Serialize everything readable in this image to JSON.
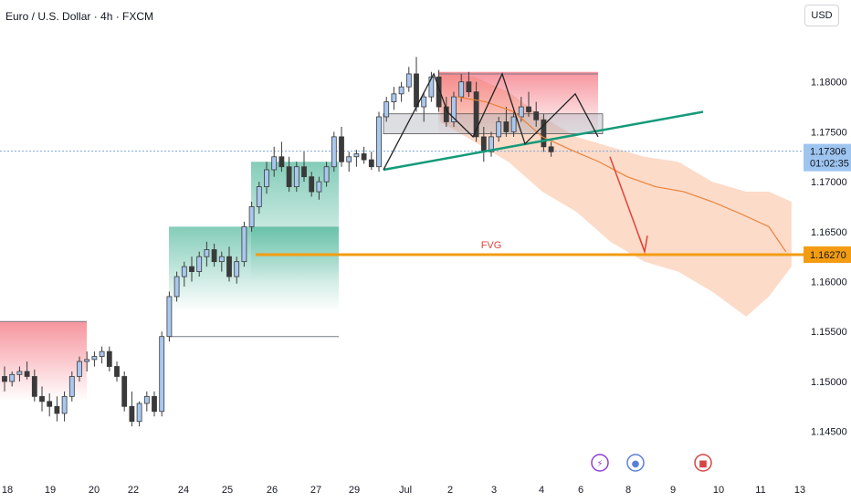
{
  "header": {
    "title": "Euro / U.S. Dollar · 4h · FXCM",
    "currency": "USD"
  },
  "colors": {
    "up": "#a9c8f0",
    "down": "#3a3a3a",
    "teal_line": "#159a7a",
    "fvg_line": "#f39c12",
    "arrow": "#e0443a",
    "projection": "#f7a475",
    "last_price_bg": "#9ec5f0",
    "fvg_price_bg": "#f39c12"
  },
  "chart_data": {
    "type": "candlestick",
    "symbol": "EURUSD",
    "timeframe": "4h",
    "x_ticks": [
      "18",
      "19",
      "20",
      "22",
      "24",
      "25",
      "26",
      "27",
      "29",
      "Jul",
      "2",
      "3",
      "4",
      "6",
      "8",
      "9",
      "10",
      "11",
      "13"
    ],
    "y_ticks": [
      "1.18000",
      "1.17500",
      "1.17000",
      "1.16500",
      "1.16000",
      "1.15500",
      "1.15000",
      "1.14500"
    ],
    "ylim": [
      1.1425,
      1.185
    ],
    "last_price": {
      "price": "1.17306",
      "countdown": "01:02:35"
    },
    "fvg": {
      "label": "FVG",
      "price_label": "1.16270",
      "price": 1.1627
    },
    "candles": [
      [
        1.1505,
        1.1515,
        1.149,
        1.15
      ],
      [
        1.15,
        1.151,
        1.1495,
        1.1507
      ],
      [
        1.1507,
        1.1515,
        1.15,
        1.151
      ],
      [
        1.151,
        1.152,
        1.1502,
        1.1505
      ],
      [
        1.1505,
        1.1512,
        1.148,
        1.1485
      ],
      [
        1.1485,
        1.1495,
        1.147,
        1.148
      ],
      [
        1.148,
        1.1488,
        1.1465,
        1.1475
      ],
      [
        1.1475,
        1.1485,
        1.146,
        1.1468
      ],
      [
        1.1468,
        1.149,
        1.146,
        1.1485
      ],
      [
        1.1485,
        1.151,
        1.148,
        1.1505
      ],
      [
        1.1505,
        1.1525,
        1.15,
        1.152
      ],
      [
        1.152,
        1.153,
        1.151,
        1.1522
      ],
      [
        1.1522,
        1.153,
        1.1515,
        1.1525
      ],
      [
        1.1525,
        1.1535,
        1.1518,
        1.153
      ],
      [
        1.153,
        1.1535,
        1.151,
        1.1515
      ],
      [
        1.1515,
        1.152,
        1.15,
        1.1505
      ],
      [
        1.1505,
        1.151,
        1.147,
        1.1475
      ],
      [
        1.1475,
        1.149,
        1.1455,
        1.146
      ],
      [
        1.146,
        1.148,
        1.1455,
        1.1478
      ],
      [
        1.1478,
        1.149,
        1.147,
        1.1485
      ],
      [
        1.1485,
        1.149,
        1.1465,
        1.147
      ],
      [
        1.147,
        1.155,
        1.1465,
        1.1545
      ],
      [
        1.1545,
        1.159,
        1.154,
        1.1585
      ],
      [
        1.1585,
        1.161,
        1.158,
        1.1605
      ],
      [
        1.1605,
        1.162,
        1.1595,
        1.1615
      ],
      [
        1.1615,
        1.1625,
        1.16,
        1.161
      ],
      [
        1.161,
        1.163,
        1.1605,
        1.1625
      ],
      [
        1.1625,
        1.164,
        1.1615,
        1.1632
      ],
      [
        1.1632,
        1.1638,
        1.1615,
        1.162
      ],
      [
        1.162,
        1.163,
        1.161,
        1.1625
      ],
      [
        1.1625,
        1.1635,
        1.16,
        1.1605
      ],
      [
        1.1605,
        1.1625,
        1.1598,
        1.162
      ],
      [
        1.162,
        1.166,
        1.1615,
        1.1655
      ],
      [
        1.1655,
        1.168,
        1.165,
        1.1675
      ],
      [
        1.1675,
        1.17,
        1.1668,
        1.1695
      ],
      [
        1.1695,
        1.172,
        1.1688,
        1.1712
      ],
      [
        1.1712,
        1.1735,
        1.1705,
        1.1725
      ],
      [
        1.1725,
        1.174,
        1.171,
        1.1715
      ],
      [
        1.1715,
        1.1725,
        1.169,
        1.1695
      ],
      [
        1.1695,
        1.172,
        1.169,
        1.1715
      ],
      [
        1.1715,
        1.173,
        1.17,
        1.1705
      ],
      [
        1.1705,
        1.171,
        1.1685,
        1.169
      ],
      [
        1.169,
        1.1705,
        1.1682,
        1.17
      ],
      [
        1.17,
        1.172,
        1.1695,
        1.1715
      ],
      [
        1.1715,
        1.175,
        1.171,
        1.1745
      ],
      [
        1.1745,
        1.1755,
        1.1715,
        1.172
      ],
      [
        1.172,
        1.173,
        1.171,
        1.1725
      ],
      [
        1.1725,
        1.1732,
        1.1715,
        1.1728
      ],
      [
        1.1728,
        1.1735,
        1.1718,
        1.1722
      ],
      [
        1.1722,
        1.173,
        1.1712,
        1.1715
      ],
      [
        1.1715,
        1.177,
        1.171,
        1.1765
      ],
      [
        1.1765,
        1.1785,
        1.176,
        1.178
      ],
      [
        1.178,
        1.1795,
        1.1772,
        1.1788
      ],
      [
        1.1788,
        1.18,
        1.178,
        1.1795
      ],
      [
        1.1795,
        1.1815,
        1.179,
        1.1808
      ],
      [
        1.1808,
        1.1825,
        1.177,
        1.1775
      ],
      [
        1.1775,
        1.179,
        1.176,
        1.1785
      ],
      [
        1.1785,
        1.181,
        1.178,
        1.1805
      ],
      [
        1.1805,
        1.1812,
        1.177,
        1.1775
      ],
      [
        1.1775,
        1.1785,
        1.1755,
        1.176
      ],
      [
        1.176,
        1.179,
        1.1755,
        1.1785
      ],
      [
        1.1785,
        1.1808,
        1.178,
        1.18
      ],
      [
        1.18,
        1.181,
        1.1785,
        1.179
      ],
      [
        1.179,
        1.18,
        1.174,
        1.1745
      ],
      [
        1.1745,
        1.1755,
        1.172,
        1.173
      ],
      [
        1.173,
        1.175,
        1.1725,
        1.1745
      ],
      [
        1.1745,
        1.1765,
        1.174,
        1.176
      ],
      [
        1.176,
        1.1775,
        1.1745,
        1.175
      ],
      [
        1.175,
        1.177,
        1.1745,
        1.1765
      ],
      [
        1.1765,
        1.1785,
        1.176,
        1.1775
      ],
      [
        1.1775,
        1.179,
        1.1765,
        1.177
      ],
      [
        1.177,
        1.178,
        1.1755,
        1.1762
      ],
      [
        1.1762,
        1.1768,
        1.173,
        1.1735
      ],
      [
        1.1735,
        1.174,
        1.1725,
        1.173
      ]
    ],
    "projection_line": [
      [
        5,
        1.1785
      ],
      [
        10,
        1.178
      ],
      [
        15,
        1.177
      ],
      [
        20,
        1.1745
      ],
      [
        25,
        1.1732
      ],
      [
        30,
        1.172
      ],
      [
        35,
        1.1705
      ],
      [
        40,
        1.1695
      ],
      [
        45,
        1.169
      ],
      [
        50,
        1.168
      ],
      [
        55,
        1.1668
      ],
      [
        60,
        1.1655
      ],
      [
        63,
        1.163
      ]
    ],
    "projection_band": [
      [
        2,
        1.181,
        1.176
      ],
      [
        8,
        1.1805,
        1.174
      ],
      [
        14,
        1.179,
        1.172
      ],
      [
        20,
        1.1765,
        1.169
      ],
      [
        26,
        1.1745,
        1.167
      ],
      [
        32,
        1.1735,
        1.164
      ],
      [
        38,
        1.1725,
        1.162
      ],
      [
        44,
        1.172,
        1.161
      ],
      [
        50,
        1.17,
        1.159
      ],
      [
        56,
        1.169,
        1.1565
      ],
      [
        60,
        1.169,
        1.1585
      ],
      [
        64,
        1.168,
        1.1615
      ]
    ]
  }
}
